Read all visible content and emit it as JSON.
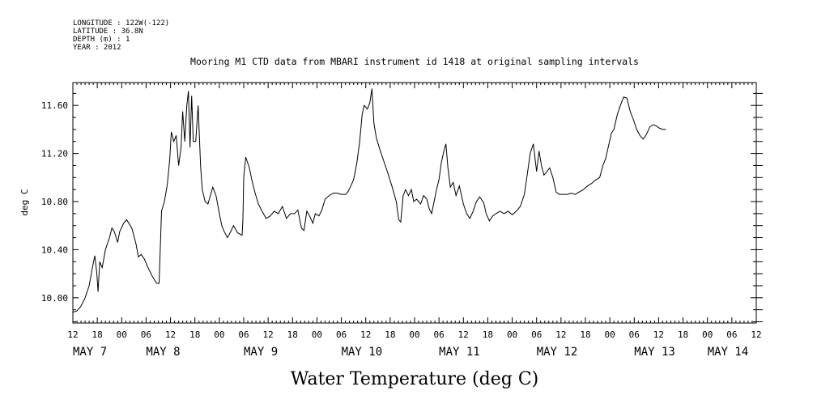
{
  "header": {
    "info_lines": [
      "LONGITUDE : 122W(-122)",
      "LATITUDE : 36.8N",
      "DEPTH (m) : 1",
      "YEAR : 2012"
    ]
  },
  "chart_data": {
    "type": "line",
    "title": "Mooring M1 CTD data from MBARI instrument id 1418 at original sampling intervals",
    "xlabel": "Water Temperature (deg C)",
    "ylabel": "deg C",
    "x_unit": "hours since 2012-05-07 12:00",
    "xlim": [
      0,
      168
    ],
    "ylim": [
      9.79,
      11.79
    ],
    "y_ticks": [
      "10.00",
      "10.40",
      "10.80",
      "11.20",
      "11.60"
    ],
    "y_tick_values": [
      10.0,
      10.4,
      10.8,
      11.2,
      11.6
    ],
    "x_tick_labels": [
      "12",
      "18",
      "00",
      "06",
      "12",
      "18",
      "00",
      "06",
      "12",
      "18",
      "00",
      "06",
      "12",
      "18",
      "00",
      "06",
      "12",
      "18",
      "00",
      "06",
      "12",
      "18",
      "00",
      "06",
      "12",
      "18",
      "00",
      "06",
      "12"
    ],
    "month_labels": [
      {
        "text": "MAY  7",
        "hour": 0
      },
      {
        "text": "MAY  8",
        "hour": 18
      },
      {
        "text": "MAY  9",
        "hour": 42
      },
      {
        "text": "MAY 10",
        "hour": 66
      },
      {
        "text": "MAY 11",
        "hour": 90
      },
      {
        "text": "MAY 12",
        "hour": 114
      },
      {
        "text": "MAY 13",
        "hour": 138
      },
      {
        "text": "MAY 14",
        "hour": 156
      }
    ],
    "grid": false,
    "series": [
      {
        "points": [
          [
            0,
            9.88
          ],
          [
            1,
            9.89
          ],
          [
            2,
            9.93
          ],
          [
            3,
            10.0
          ],
          [
            4,
            10.1
          ],
          [
            4.8,
            10.25
          ],
          [
            5.4,
            10.35
          ],
          [
            5.9,
            10.2
          ],
          [
            6.2,
            10.05
          ],
          [
            6.6,
            10.3
          ],
          [
            7.2,
            10.25
          ],
          [
            8,
            10.4
          ],
          [
            9,
            10.5
          ],
          [
            9.6,
            10.58
          ],
          [
            10.2,
            10.55
          ],
          [
            11,
            10.46
          ],
          [
            11.5,
            10.55
          ],
          [
            12.5,
            10.62
          ],
          [
            13.2,
            10.65
          ],
          [
            14.5,
            10.58
          ],
          [
            15.5,
            10.45
          ],
          [
            16.1,
            10.34
          ],
          [
            16.8,
            10.36
          ],
          [
            17.6,
            10.32
          ],
          [
            18.5,
            10.25
          ],
          [
            19.5,
            10.18
          ],
          [
            20.6,
            10.12
          ],
          [
            21.2,
            10.12
          ],
          [
            21.8,
            10.72
          ],
          [
            22.5,
            10.8
          ],
          [
            23.2,
            10.94
          ],
          [
            23.8,
            11.15
          ],
          [
            24.2,
            11.38
          ],
          [
            24.8,
            11.3
          ],
          [
            25.4,
            11.35
          ],
          [
            26,
            11.1
          ],
          [
            26.6,
            11.25
          ],
          [
            27,
            11.55
          ],
          [
            27.5,
            11.3
          ],
          [
            28,
            11.6
          ],
          [
            28.4,
            11.72
          ],
          [
            28.8,
            11.25
          ],
          [
            29.2,
            11.68
          ],
          [
            29.6,
            11.3
          ],
          [
            30.2,
            11.3
          ],
          [
            30.8,
            11.6
          ],
          [
            31.4,
            11.1
          ],
          [
            31.8,
            10.9
          ],
          [
            32.5,
            10.8
          ],
          [
            33.2,
            10.78
          ],
          [
            33.8,
            10.85
          ],
          [
            34.4,
            10.92
          ],
          [
            35.2,
            10.85
          ],
          [
            36,
            10.7
          ],
          [
            36.6,
            10.6
          ],
          [
            37.2,
            10.55
          ],
          [
            38,
            10.5
          ],
          [
            38.8,
            10.55
          ],
          [
            39.5,
            10.6
          ],
          [
            40.5,
            10.54
          ],
          [
            41.6,
            10.52
          ],
          [
            41.8,
            10.65
          ],
          [
            42,
            11.0
          ],
          [
            42.5,
            11.17
          ],
          [
            43.4,
            11.08
          ],
          [
            44,
            10.98
          ],
          [
            44.8,
            10.87
          ],
          [
            45.6,
            10.78
          ],
          [
            46.5,
            10.72
          ],
          [
            47.5,
            10.66
          ],
          [
            48.5,
            10.68
          ],
          [
            49.5,
            10.72
          ],
          [
            50.5,
            10.7
          ],
          [
            51.5,
            10.76
          ],
          [
            52.5,
            10.66
          ],
          [
            53.5,
            10.7
          ],
          [
            54.5,
            10.7
          ],
          [
            55.3,
            10.73
          ],
          [
            56.2,
            10.58
          ],
          [
            56.8,
            10.56
          ],
          [
            57.5,
            10.72
          ],
          [
            58.2,
            10.68
          ],
          [
            59,
            10.62
          ],
          [
            59.6,
            10.7
          ],
          [
            60.5,
            10.68
          ],
          [
            61.2,
            10.73
          ],
          [
            62,
            10.82
          ],
          [
            63,
            10.85
          ],
          [
            64,
            10.87
          ],
          [
            65,
            10.87
          ],
          [
            66,
            10.86
          ],
          [
            67,
            10.86
          ],
          [
            67.6,
            10.88
          ],
          [
            68.2,
            10.92
          ],
          [
            69,
            10.98
          ],
          [
            69.8,
            11.12
          ],
          [
            70.5,
            11.3
          ],
          [
            71.1,
            11.52
          ],
          [
            71.6,
            11.6
          ],
          [
            72.4,
            11.57
          ],
          [
            73,
            11.62
          ],
          [
            73.5,
            11.74
          ],
          [
            74,
            11.45
          ],
          [
            74.6,
            11.33
          ],
          [
            75.5,
            11.23
          ],
          [
            76.5,
            11.13
          ],
          [
            77.5,
            11.03
          ],
          [
            78.5,
            10.92
          ],
          [
            79.5,
            10.8
          ],
          [
            80.1,
            10.65
          ],
          [
            80.6,
            10.63
          ],
          [
            81.2,
            10.85
          ],
          [
            81.8,
            10.9
          ],
          [
            82.5,
            10.85
          ],
          [
            83.2,
            10.9
          ],
          [
            83.8,
            10.8
          ],
          [
            84.5,
            10.82
          ],
          [
            85.5,
            10.78
          ],
          [
            86.2,
            10.85
          ],
          [
            87,
            10.82
          ],
          [
            87.6,
            10.74
          ],
          [
            88.2,
            10.7
          ],
          [
            88.8,
            10.8
          ],
          [
            89.4,
            10.9
          ],
          [
            90,
            10.98
          ],
          [
            90.6,
            11.13
          ],
          [
            91.2,
            11.22
          ],
          [
            91.7,
            11.28
          ],
          [
            92.2,
            11.08
          ],
          [
            92.8,
            10.92
          ],
          [
            93.5,
            10.96
          ],
          [
            94.2,
            10.85
          ],
          [
            95,
            10.93
          ],
          [
            96,
            10.78
          ],
          [
            96.8,
            10.7
          ],
          [
            97.6,
            10.66
          ],
          [
            98.4,
            10.72
          ],
          [
            99.2,
            10.8
          ],
          [
            100,
            10.84
          ],
          [
            101,
            10.79
          ],
          [
            101.6,
            10.7
          ],
          [
            102.4,
            10.64
          ],
          [
            103.2,
            10.68
          ],
          [
            104,
            10.7
          ],
          [
            105,
            10.72
          ],
          [
            106,
            10.7
          ],
          [
            107,
            10.72
          ],
          [
            108,
            10.69
          ],
          [
            109,
            10.72
          ],
          [
            110,
            10.76
          ],
          [
            111,
            10.86
          ],
          [
            111.8,
            11.05
          ],
          [
            112.4,
            11.2
          ],
          [
            113.2,
            11.28
          ],
          [
            114,
            11.05
          ],
          [
            114.6,
            11.22
          ],
          [
            115.2,
            11.1
          ],
          [
            115.8,
            11.02
          ],
          [
            116.5,
            11.05
          ],
          [
            117.2,
            11.08
          ],
          [
            118,
            11.0
          ],
          [
            118.8,
            10.88
          ],
          [
            119.5,
            10.86
          ],
          [
            120.5,
            10.86
          ],
          [
            121.5,
            10.86
          ],
          [
            122.5,
            10.87
          ],
          [
            123.5,
            10.86
          ],
          [
            124.5,
            10.88
          ],
          [
            125.5,
            10.9
          ],
          [
            126.5,
            10.93
          ],
          [
            127.5,
            10.95
          ],
          [
            128.5,
            10.98
          ],
          [
            129.5,
            11.0
          ],
          [
            130.3,
            11.1
          ],
          [
            131,
            11.16
          ],
          [
            131.8,
            11.28
          ],
          [
            132.4,
            11.37
          ],
          [
            133,
            11.4
          ],
          [
            133.8,
            11.52
          ],
          [
            134.6,
            11.6
          ],
          [
            135.4,
            11.67
          ],
          [
            136.2,
            11.66
          ],
          [
            137,
            11.55
          ],
          [
            137.8,
            11.48
          ],
          [
            138.6,
            11.4
          ],
          [
            139.4,
            11.35
          ],
          [
            140.2,
            11.32
          ],
          [
            141,
            11.36
          ],
          [
            141.8,
            11.42
          ],
          [
            142.6,
            11.44
          ],
          [
            143.4,
            11.43
          ],
          [
            144.2,
            11.41
          ],
          [
            145,
            11.4
          ],
          [
            145.8,
            11.4
          ]
        ]
      }
    ]
  }
}
